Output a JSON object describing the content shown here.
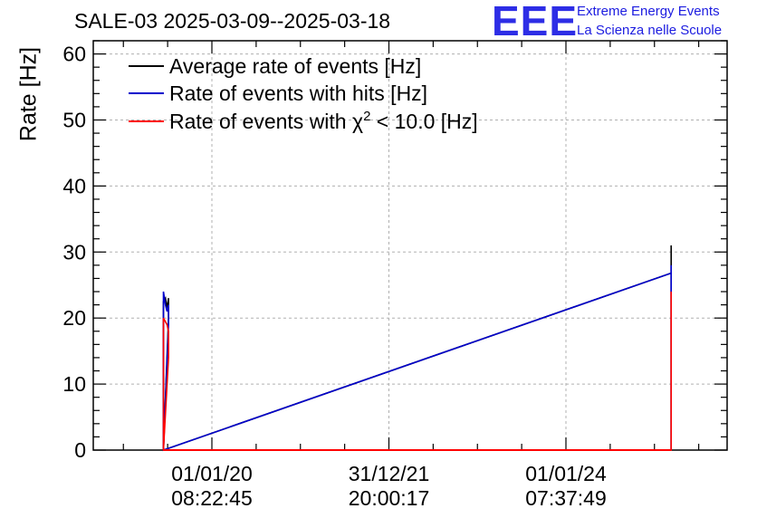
{
  "header": {
    "title": "SALE-03 2025-03-09--2025-03-18",
    "logo_text": "EEE",
    "brand_line1": "Extreme Energy Events",
    "brand_line2": "La Scienza nelle Scuole"
  },
  "chart_data": {
    "type": "line",
    "ylabel": "Rate [Hz]",
    "ylim": [
      0,
      62
    ],
    "y_ticks": [
      "0",
      "10",
      "20",
      "30",
      "40",
      "50",
      "60"
    ],
    "x_ticks": [
      {
        "date": "01/01/20",
        "time": "08:22:45"
      },
      {
        "date": "31/12/21",
        "time": "20:00:17"
      },
      {
        "date": "01/01/24",
        "time": "07:37:49"
      }
    ],
    "grid": true,
    "legend_position": "top-left",
    "series": [
      {
        "name": "Average rate of events [Hz]",
        "color": "#000000",
        "points": [
          {
            "x": "2019-06-15",
            "y": 0
          },
          {
            "x": "2019-06-15",
            "y": 22.5
          },
          {
            "x": "2019-06-23",
            "y": 23
          },
          {
            "x": "2019-06-30",
            "y": 21.5
          },
          {
            "x": "2019-07-06",
            "y": 23
          },
          {
            "x": "2019-07-06",
            "y": 20
          },
          {
            "x": "2019-06-15",
            "y": 0
          },
          {
            "x": "2025-03-10",
            "y": 26.8
          },
          {
            "x": "2025-03-10",
            "y": 31
          },
          {
            "x": "2025-03-10",
            "y": 0
          }
        ]
      },
      {
        "name": "Rate of events with hits [Hz]",
        "color": "#0000cc",
        "points": [
          {
            "x": "2019-06-15",
            "y": 0
          },
          {
            "x": "2019-06-15",
            "y": 24
          },
          {
            "x": "2019-06-23",
            "y": 22
          },
          {
            "x": "2019-06-30",
            "y": 21
          },
          {
            "x": "2019-07-06",
            "y": 22
          },
          {
            "x": "2019-07-06",
            "y": 19
          },
          {
            "x": "2019-06-15",
            "y": 0
          },
          {
            "x": "2025-03-10",
            "y": 26.8
          },
          {
            "x": "2025-03-10",
            "y": 28
          },
          {
            "x": "2025-03-10",
            "y": 0
          }
        ]
      },
      {
        "name": "Rate of events with χ² < 10.0 [Hz]",
        "legend_prefix": "Rate of events with χ",
        "legend_sup": "2",
        "legend_suffix": " < 10.0 [Hz]",
        "color": "#ff0000",
        "points": [
          {
            "x": "2019-06-15",
            "y": 0
          },
          {
            "x": "2019-06-15",
            "y": 10.5
          },
          {
            "x": "2019-06-15",
            "y": 20
          },
          {
            "x": "2019-06-30",
            "y": 19
          },
          {
            "x": "2019-07-06",
            "y": 18
          },
          {
            "x": "2019-07-06",
            "y": 14
          },
          {
            "x": "2019-06-15",
            "y": 0
          },
          {
            "x": "2025-03-10",
            "y": 0
          },
          {
            "x": "2025-03-10",
            "y": 24
          },
          {
            "x": "2025-03-10",
            "y": 0
          }
        ]
      }
    ]
  }
}
